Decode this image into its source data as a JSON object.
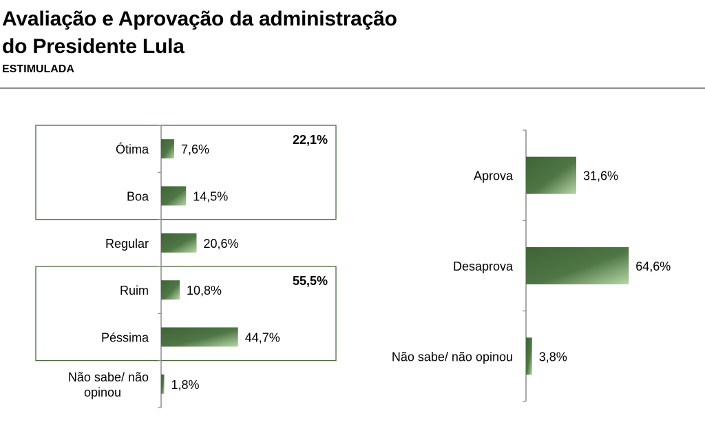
{
  "header": {
    "title_line1": "Avaliação e Aprovação da administração",
    "title_line2": "do Presidente Lula",
    "subtitle": "ESTIMULADA"
  },
  "colors": {
    "bar_dark": "#3f6337",
    "bar_light": "#b7d8a6",
    "frame": "#4a6b3f",
    "axis": "#8c8c8c"
  },
  "chart_data": [
    {
      "type": "bar",
      "orientation": "horizontal",
      "categories": [
        "Ótima",
        "Boa",
        "Regular",
        "Ruim",
        "Péssima",
        "Não sabe/ não opinou"
      ],
      "values": [
        7.6,
        14.5,
        20.6,
        10.8,
        44.7,
        1.8
      ],
      "value_labels": [
        "7,6%",
        "14,5%",
        "20,6%",
        "10,8%",
        "44,7%",
        "1,8%"
      ],
      "groups": [
        {
          "categories": [
            "Ótima",
            "Boa"
          ],
          "total": 22.1,
          "label": "22,1%"
        },
        {
          "categories": [
            "Ruim",
            "Péssima"
          ],
          "total": 55.5,
          "label": "55,5%"
        }
      ],
      "xlim": [
        0,
        100
      ],
      "grid": false
    },
    {
      "type": "bar",
      "orientation": "horizontal",
      "categories": [
        "Aprova",
        "Desaprova",
        "Não sabe/ não opinou"
      ],
      "values": [
        31.6,
        64.6,
        3.8
      ],
      "value_labels": [
        "31,6%",
        "64,6%",
        "3,8%"
      ],
      "xlim": [
        0,
        100
      ],
      "grid": false
    }
  ]
}
